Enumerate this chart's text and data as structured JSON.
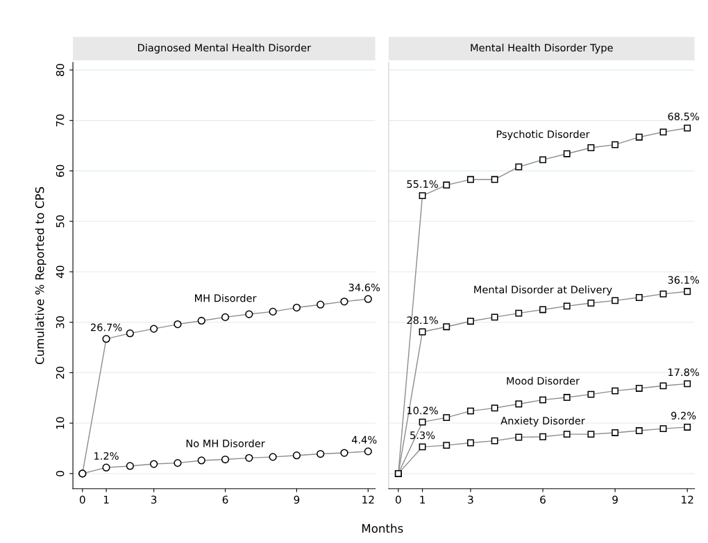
{
  "chart_data": [
    {
      "type": "line",
      "title": "Diagnosed Mental Health Disorder",
      "ylabel": "Cumulative % Reported to CPS",
      "xlabel": "Months",
      "x": [
        0,
        1,
        2,
        3,
        4,
        5,
        6,
        7,
        8,
        9,
        10,
        11,
        12
      ],
      "series": [
        {
          "name": "MH Disorder",
          "color": "#8c8c8c",
          "marker": "circle",
          "values": [
            0,
            26.7,
            27.8,
            28.7,
            29.6,
            30.3,
            31.0,
            31.6,
            32.1,
            32.9,
            33.5,
            34.1,
            34.6
          ],
          "value_labels": [
            null,
            "26.7%",
            null,
            null,
            null,
            null,
            null,
            null,
            null,
            null,
            null,
            null,
            "34.6%"
          ]
        },
        {
          "name": "No MH Disorder",
          "color": "#8c8c8c",
          "marker": "circle",
          "values": [
            0,
            1.2,
            1.5,
            1.9,
            2.1,
            2.6,
            2.8,
            3.1,
            3.3,
            3.6,
            3.9,
            4.1,
            4.4
          ],
          "value_labels": [
            null,
            "1.2%",
            null,
            null,
            null,
            null,
            null,
            null,
            null,
            null,
            null,
            null,
            "4.4%"
          ]
        }
      ],
      "xlim": [
        -0.4,
        12.3
      ],
      "xticks": [
        0,
        1,
        3,
        6,
        9,
        12
      ],
      "ylim": [
        -3,
        81.5
      ],
      "yticks": [
        0,
        10,
        20,
        30,
        40,
        50,
        60,
        70,
        80
      ],
      "grid": "y",
      "legend": false
    },
    {
      "type": "line",
      "title": "Mental Health Disorder Type",
      "x": [
        0,
        1,
        2,
        3,
        4,
        5,
        6,
        7,
        8,
        9,
        10,
        11,
        12
      ],
      "series": [
        {
          "name": "Psychotic Disorder",
          "color": "#8c8c8c",
          "marker": "square",
          "values": [
            0,
            55.1,
            57.2,
            58.3,
            58.3,
            60.8,
            62.2,
            63.4,
            64.6,
            65.2,
            66.7,
            67.7,
            68.5
          ],
          "value_labels": [
            null,
            "55.1%",
            null,
            null,
            null,
            null,
            null,
            null,
            null,
            null,
            null,
            null,
            "68.5%"
          ]
        },
        {
          "name": "Mental Disorder at Delivery",
          "color": "#8c8c8c",
          "marker": "square",
          "values": [
            0,
            28.1,
            29.1,
            30.2,
            31.0,
            31.8,
            32.5,
            33.2,
            33.8,
            34.3,
            34.9,
            35.6,
            36.1
          ],
          "value_labels": [
            null,
            "28.1%",
            null,
            null,
            null,
            null,
            null,
            null,
            null,
            null,
            null,
            null,
            "36.1%"
          ]
        },
        {
          "name": "Mood Disorder",
          "color": "#8c8c8c",
          "marker": "square",
          "values": [
            0,
            10.2,
            11.1,
            12.4,
            13.0,
            13.8,
            14.6,
            15.1,
            15.7,
            16.4,
            16.9,
            17.4,
            17.8
          ],
          "value_labels": [
            null,
            "10.2%",
            null,
            null,
            null,
            null,
            null,
            null,
            null,
            null,
            null,
            null,
            "17.8%"
          ]
        },
        {
          "name": "Anxiety Disorder",
          "color": "#8c8c8c",
          "marker": "square",
          "values": [
            0,
            5.3,
            5.6,
            6.1,
            6.5,
            7.2,
            7.3,
            7.8,
            7.8,
            8.1,
            8.5,
            8.9,
            9.2
          ],
          "value_labels": [
            null,
            "5.3%",
            null,
            null,
            null,
            null,
            null,
            null,
            null,
            null,
            null,
            null,
            "9.2%"
          ]
        }
      ],
      "xlim": [
        -0.4,
        12.3
      ],
      "xticks": [
        0,
        1,
        3,
        6,
        9,
        12
      ],
      "ylim": [
        -3,
        81.5
      ],
      "yticks": [
        0,
        10,
        20,
        30,
        40,
        50,
        60,
        70,
        80
      ],
      "grid": "y",
      "legend": false,
      "tick_labels": "x"
    }
  ]
}
